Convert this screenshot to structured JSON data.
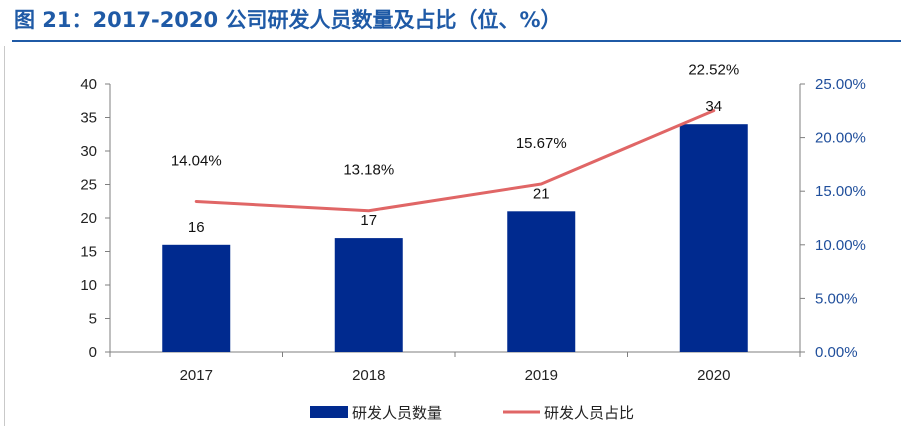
{
  "figure": {
    "title": "图 21：2017-2020 公司研发人员数量及占比（位、%）"
  },
  "chart_data": {
    "type": "bar",
    "title": "图 21：2017-2020 公司研发人员数量及占比（位、%）",
    "categories": [
      "2017",
      "2018",
      "2019",
      "2020"
    ],
    "series": [
      {
        "name": "研发人员数量",
        "type": "bar",
        "axis": "left",
        "color": "#002a8f",
        "values": [
          16,
          17,
          21,
          34
        ],
        "labels": [
          "16",
          "17",
          "21",
          "34"
        ]
      },
      {
        "name": "研发人员占比",
        "type": "line",
        "axis": "right",
        "color": "#e06666",
        "values": [
          14.04,
          13.18,
          15.67,
          22.52
        ],
        "labels": [
          "14.04%",
          "13.18%",
          "15.67%",
          "22.52%"
        ]
      }
    ],
    "y_left": {
      "min": 0,
      "max": 40,
      "ticks": [
        0,
        5,
        10,
        15,
        20,
        25,
        30,
        35,
        40
      ],
      "tick_labels": [
        "0",
        "5",
        "10",
        "15",
        "20",
        "25",
        "30",
        "35",
        "40"
      ]
    },
    "y_right": {
      "min": 0,
      "max": 25,
      "ticks": [
        0,
        5,
        10,
        15,
        20,
        25
      ],
      "tick_labels": [
        "0.00%",
        "5.00%",
        "10.00%",
        "15.00%",
        "20.00%",
        "25.00%"
      ]
    },
    "grid": false,
    "legend_position": "bottom-center"
  }
}
